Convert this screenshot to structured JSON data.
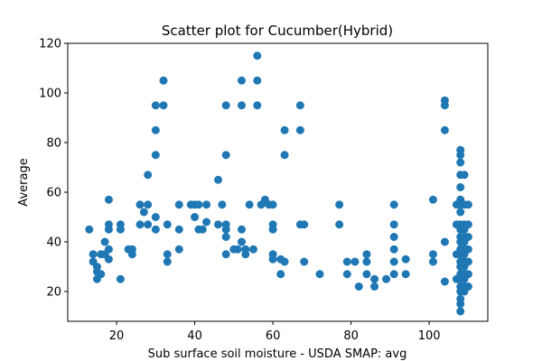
{
  "chart_data": {
    "type": "scatter",
    "title": "Scatter plot for Cucumber(Hybrid)",
    "xlabel": "Sub surface soil moisture - USDA SMAP: avg",
    "ylabel": "Average",
    "xlim": [
      7.5,
      115
    ],
    "ylim": [
      8,
      120
    ],
    "xticks": [
      20,
      40,
      60,
      80,
      100
    ],
    "yticks": [
      20,
      40,
      60,
      80,
      100,
      120
    ],
    "grid": false,
    "color": "#1f77b4",
    "points": [
      [
        13,
        45
      ],
      [
        14,
        35
      ],
      [
        14,
        32
      ],
      [
        15,
        25
      ],
      [
        15,
        28
      ],
      [
        15,
        30
      ],
      [
        16,
        27
      ],
      [
        16,
        35
      ],
      [
        17,
        40
      ],
      [
        17,
        35
      ],
      [
        18,
        45
      ],
      [
        18,
        47
      ],
      [
        18,
        57
      ],
      [
        18,
        37
      ],
      [
        18,
        33
      ],
      [
        21,
        47
      ],
      [
        21,
        45
      ],
      [
        21,
        25
      ],
      [
        23,
        37
      ],
      [
        24,
        37
      ],
      [
        24,
        35
      ],
      [
        26,
        55
      ],
      [
        26,
        47
      ],
      [
        27,
        52
      ],
      [
        28,
        55
      ],
      [
        28,
        47
      ],
      [
        28,
        67
      ],
      [
        30,
        95
      ],
      [
        30,
        85
      ],
      [
        30,
        75
      ],
      [
        30,
        50
      ],
      [
        30,
        45
      ],
      [
        32,
        105
      ],
      [
        32,
        95
      ],
      [
        33,
        47
      ],
      [
        33,
        35
      ],
      [
        33,
        32
      ],
      [
        36,
        55
      ],
      [
        36,
        45
      ],
      [
        36,
        37
      ],
      [
        39,
        55
      ],
      [
        40,
        55
      ],
      [
        40,
        50
      ],
      [
        41,
        55
      ],
      [
        41,
        45
      ],
      [
        42,
        45
      ],
      [
        43,
        55
      ],
      [
        43,
        48
      ],
      [
        46,
        65
      ],
      [
        46,
        47
      ],
      [
        47,
        55
      ],
      [
        48,
        95
      ],
      [
        48,
        75
      ],
      [
        48,
        47
      ],
      [
        48,
        45
      ],
      [
        48,
        42
      ],
      [
        48,
        35
      ],
      [
        50,
        37
      ],
      [
        51,
        37
      ],
      [
        52,
        105
      ],
      [
        52,
        95
      ],
      [
        52,
        45
      ],
      [
        52,
        40
      ],
      [
        53,
        35
      ],
      [
        53,
        37
      ],
      [
        54,
        55
      ],
      [
        55,
        37
      ],
      [
        56,
        115
      ],
      [
        56,
        105
      ],
      [
        56,
        95
      ],
      [
        57,
        55
      ],
      [
        58,
        57
      ],
      [
        59,
        55
      ],
      [
        60,
        55
      ],
      [
        60,
        47
      ],
      [
        60,
        45
      ],
      [
        60,
        35
      ],
      [
        60,
        33
      ],
      [
        62,
        33
      ],
      [
        62,
        27
      ],
      [
        63,
        85
      ],
      [
        63,
        75
      ],
      [
        63,
        32
      ],
      [
        67,
        95
      ],
      [
        67,
        85
      ],
      [
        67,
        47
      ],
      [
        68,
        47
      ],
      [
        68,
        32
      ],
      [
        72,
        27
      ],
      [
        77,
        55
      ],
      [
        77,
        47
      ],
      [
        79,
        32
      ],
      [
        79,
        27
      ],
      [
        81,
        32
      ],
      [
        82,
        22
      ],
      [
        84,
        35
      ],
      [
        84,
        32
      ],
      [
        84,
        27
      ],
      [
        86,
        25
      ],
      [
        86,
        22
      ],
      [
        89,
        25
      ],
      [
        91,
        55
      ],
      [
        91,
        47
      ],
      [
        91,
        42
      ],
      [
        91,
        37
      ],
      [
        91,
        32
      ],
      [
        91,
        27
      ],
      [
        94,
        33
      ],
      [
        94,
        27
      ],
      [
        101,
        57
      ],
      [
        101,
        35
      ],
      [
        101,
        32
      ],
      [
        104,
        97
      ],
      [
        104,
        95
      ],
      [
        104,
        85
      ],
      [
        104,
        40
      ],
      [
        104,
        24
      ],
      [
        107,
        55
      ],
      [
        107,
        47
      ],
      [
        107,
        35
      ],
      [
        107,
        25
      ],
      [
        108,
        77
      ],
      [
        108,
        75
      ],
      [
        108,
        72
      ],
      [
        108,
        67
      ],
      [
        108,
        62
      ],
      [
        108,
        57
      ],
      [
        108,
        55
      ],
      [
        108,
        52
      ],
      [
        108,
        47
      ],
      [
        108,
        45
      ],
      [
        108,
        42
      ],
      [
        108,
        40
      ],
      [
        108,
        37
      ],
      [
        108,
        35
      ],
      [
        108,
        32
      ],
      [
        108,
        30
      ],
      [
        108,
        27
      ],
      [
        108,
        25
      ],
      [
        108,
        22
      ],
      [
        108,
        20
      ],
      [
        108,
        17
      ],
      [
        108,
        15
      ],
      [
        108,
        12
      ],
      [
        109,
        67
      ],
      [
        109,
        55
      ],
      [
        109,
        47
      ],
      [
        109,
        45
      ],
      [
        109,
        42
      ],
      [
        109,
        40
      ],
      [
        109,
        37
      ],
      [
        109,
        35
      ],
      [
        109,
        32
      ],
      [
        109,
        30
      ],
      [
        109,
        27
      ],
      [
        109,
        25
      ],
      [
        109,
        22
      ],
      [
        109,
        20
      ],
      [
        110,
        55
      ],
      [
        110,
        47
      ],
      [
        110,
        42
      ],
      [
        110,
        37
      ],
      [
        110,
        32
      ],
      [
        110,
        27
      ],
      [
        110,
        22
      ]
    ]
  }
}
